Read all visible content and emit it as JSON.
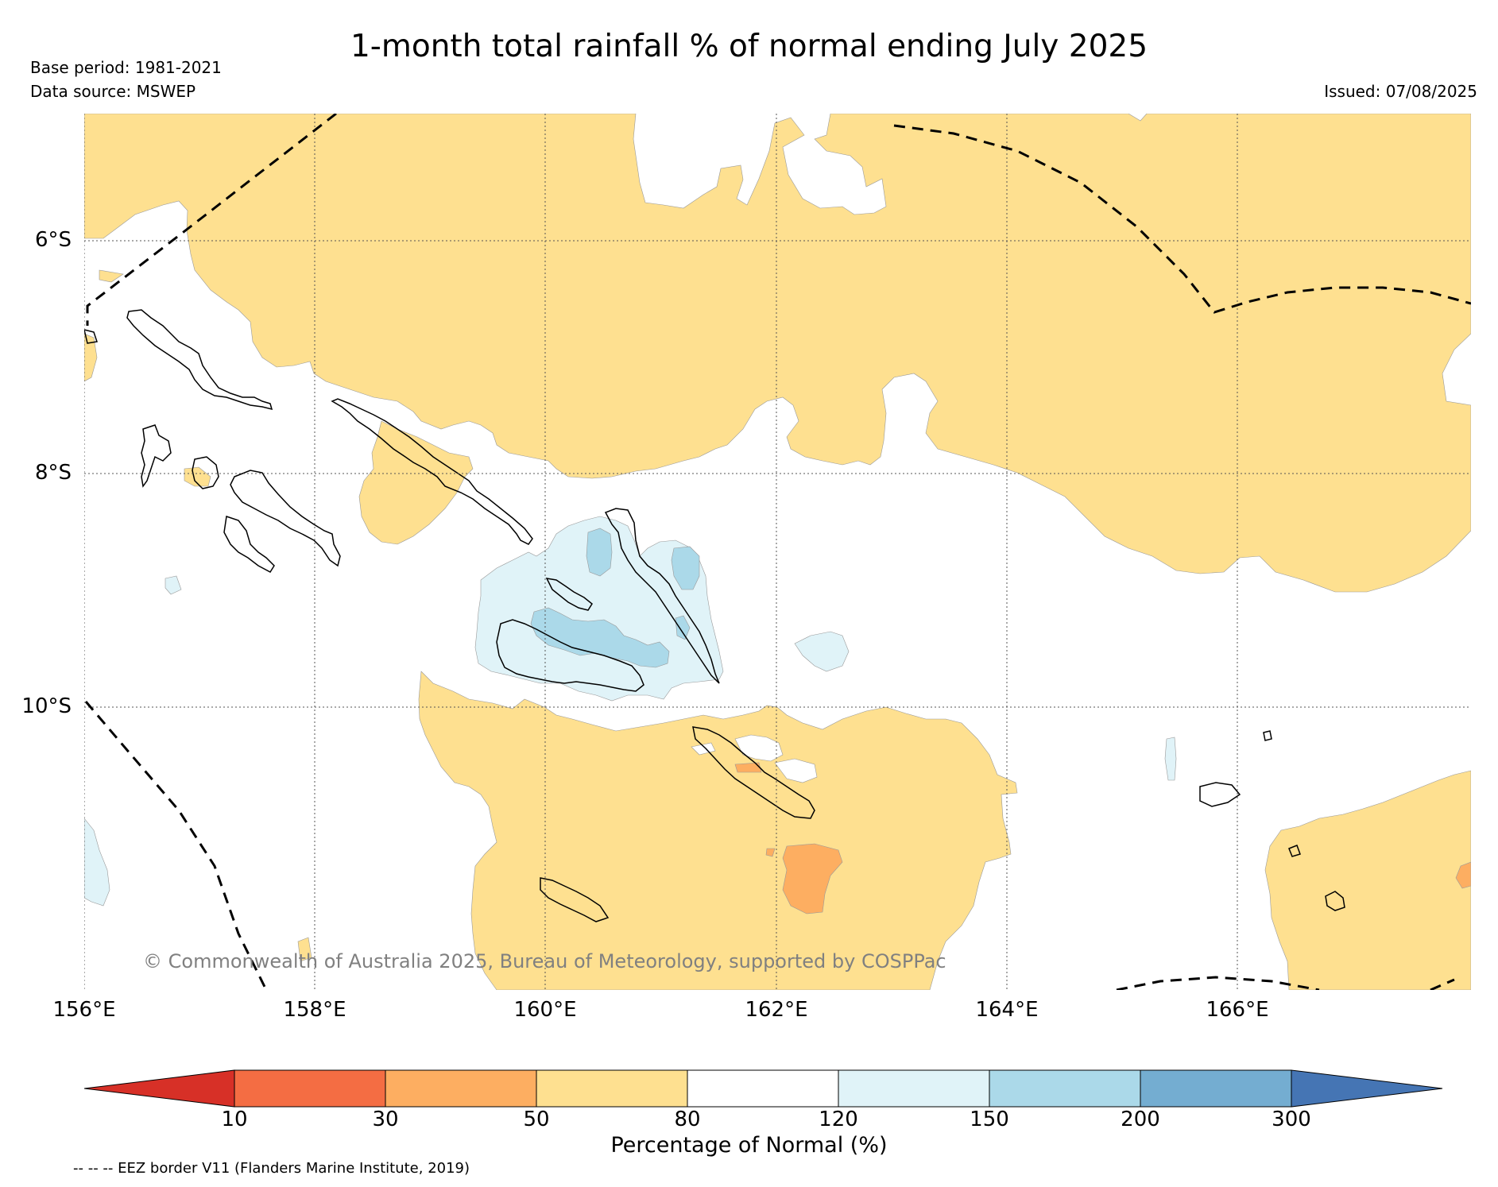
{
  "title": "1-month total rainfall % of normal ending July 2025",
  "meta": {
    "base_period": "Base period: 1981-2021",
    "data_source": "Data source: MSWEP",
    "issued": "Issued: 07/08/2025"
  },
  "axes": {
    "lat_labels": [
      "6°S",
      "8°S",
      "10°S"
    ],
    "lon_labels": [
      "156°E",
      "158°E",
      "160°E",
      "162°E",
      "164°E",
      "166°E"
    ]
  },
  "copyright": "© Commonwealth of Australia 2025, Bureau of Meteorology, supported by COSPPac",
  "colorbar": {
    "title": "Percentage of Normal (%)",
    "ticks": [
      "10",
      "30",
      "50",
      "80",
      "120",
      "150",
      "200",
      "300"
    ],
    "colors": [
      "#d73027",
      "#f46d43",
      "#fdae61",
      "#fee090",
      "#ffffff",
      "#e0f3f8",
      "#abd9e9",
      "#74add1",
      "#4575b4"
    ]
  },
  "legend_note": "-- -- -- EEZ border V11 (Flanders Marine Institute, 2019)",
  "colors": {
    "dry_fill": "#fee090",
    "very_dry_fill": "#fdae61",
    "wet_fill": "#e0f3f8",
    "very_wet_fill": "#abd9e9",
    "coast": "#000000",
    "eez": "#000000",
    "grid": "#555555"
  }
}
